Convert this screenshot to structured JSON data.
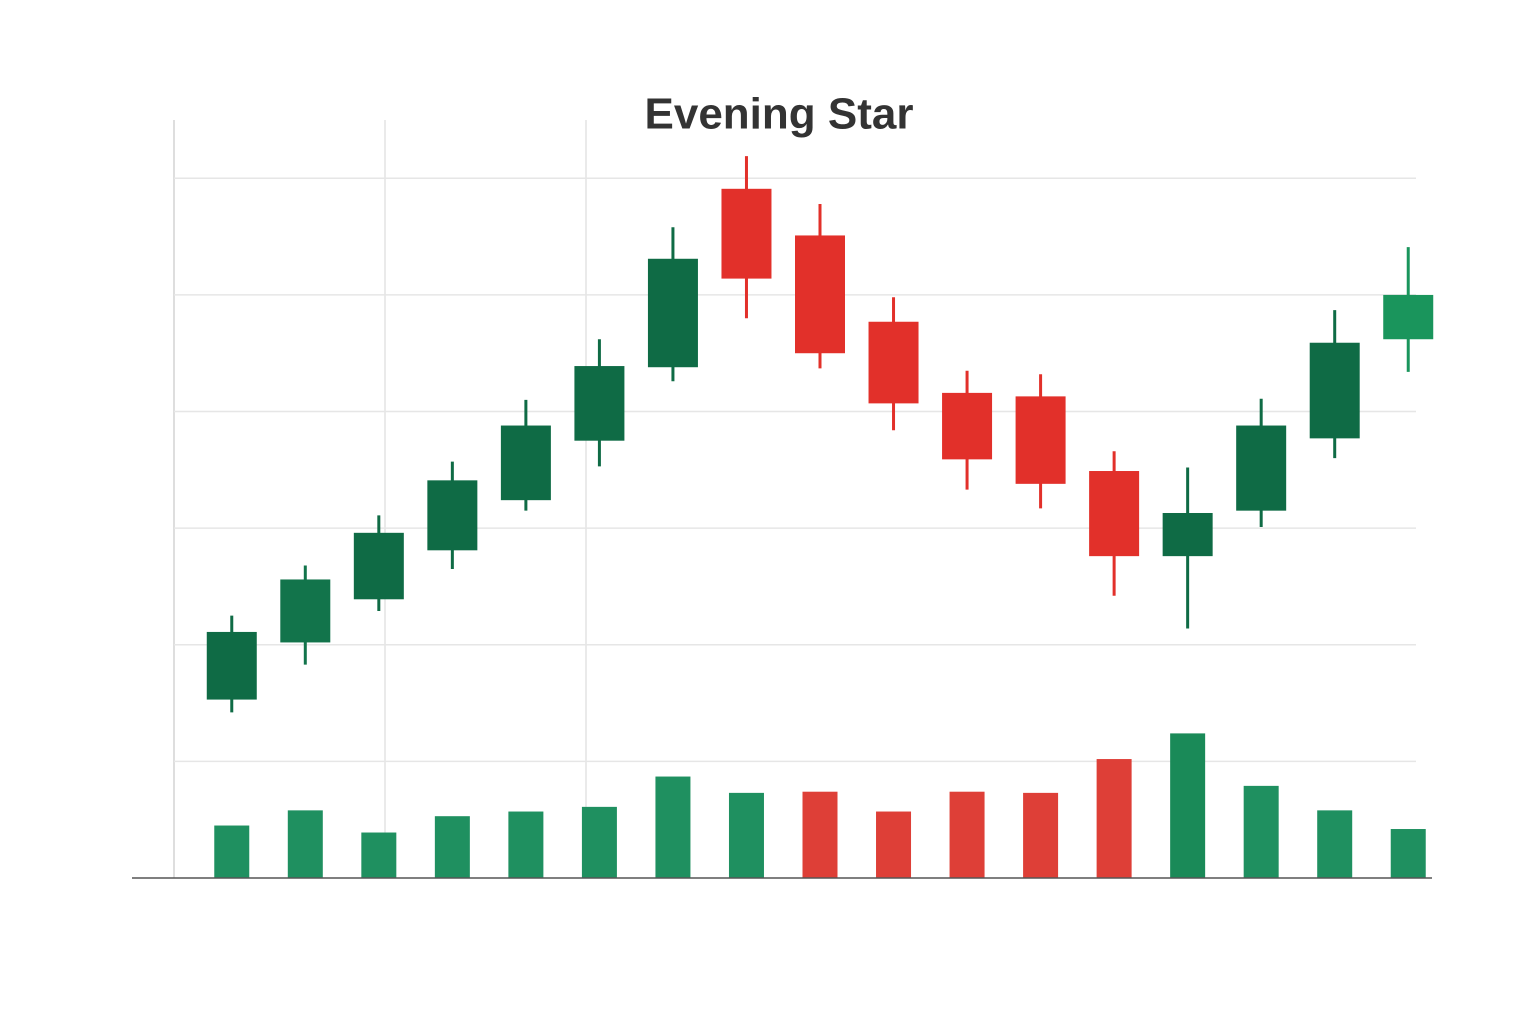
{
  "chart_data": {
    "type": "candlestick",
    "title": "Evening Star",
    "categories": [
      null,
      null,
      null,
      null,
      null,
      null,
      null,
      null,
      null,
      null,
      null,
      null,
      null,
      null,
      null,
      null,
      null
    ],
    "open": [
      15.3,
      20.2,
      23.9,
      28.1,
      32.4,
      37.5,
      43.8,
      59.1,
      55.1,
      47.7,
      41.6,
      41.3,
      34.9,
      27.6,
      31.5,
      37.7,
      46.2
    ],
    "high": [
      22.5,
      26.8,
      31.1,
      35.7,
      41.0,
      46.2,
      55.8,
      61.9,
      57.8,
      49.8,
      43.5,
      43.2,
      36.6,
      35.2,
      41.1,
      48.7,
      54.1
    ],
    "low": [
      14.2,
      18.3,
      22.9,
      26.5,
      31.5,
      35.3,
      42.6,
      48.0,
      43.7,
      38.4,
      33.3,
      31.7,
      24.2,
      21.4,
      30.1,
      36.0,
      43.4
    ],
    "close": [
      21.1,
      25.6,
      29.6,
      34.1,
      38.8,
      43.9,
      53.1,
      51.4,
      45.0,
      40.7,
      35.9,
      33.8,
      27.6,
      31.3,
      38.8,
      45.9,
      50.0
    ],
    "colors": [
      "#0f6b45",
      "#12744b",
      "#0f6b45",
      "#0f6b45",
      "#0f6b45",
      "#0f6b45",
      "#0f6b45",
      "#e2302a",
      "#e2302a",
      "#e2302a",
      "#e2302a",
      "#e2302a",
      "#e2302a",
      "#0f6b45",
      "#0f6b45",
      "#0f6b45",
      "#1a955c"
    ],
    "volume": [
      4.5,
      5.8,
      3.9,
      5.3,
      5.7,
      6.1,
      8.7,
      7.3,
      7.4,
      5.7,
      7.4,
      7.3,
      10.2,
      12.4,
      7.9,
      5.8,
      4.2
    ],
    "volume_colors": [
      "#1f9060",
      "#1f9060",
      "#1f9060",
      "#1f9060",
      "#1f9060",
      "#1f9060",
      "#1f9060",
      "#1f9060",
      "#de3f37",
      "#de3f37",
      "#de3f37",
      "#de3f37",
      "#de3f37",
      "#1a8a58",
      "#1f9060",
      "#1f9060",
      "#1f9060"
    ],
    "ylim": [
      0,
      65
    ],
    "yticks": [
      10,
      20,
      30,
      40,
      50,
      60
    ],
    "grid": true
  }
}
